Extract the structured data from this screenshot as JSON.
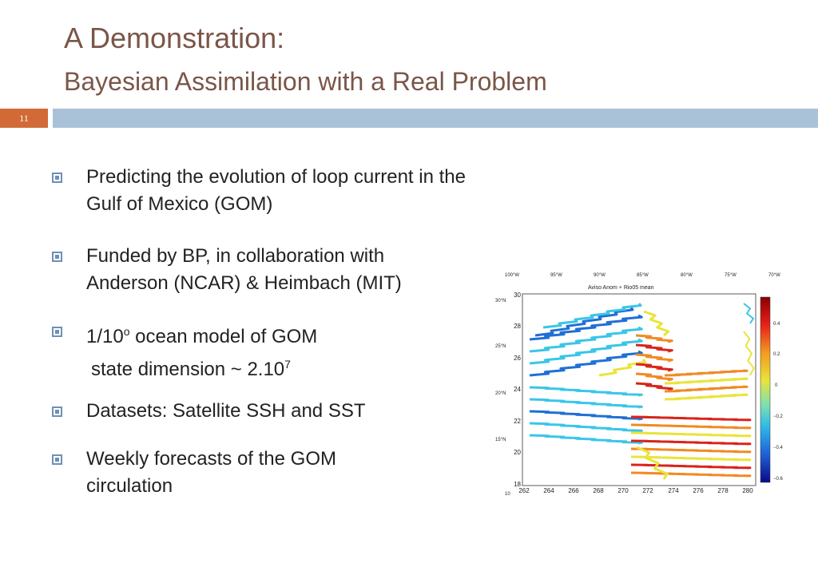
{
  "title": "A Demonstration:",
  "subtitle": "Bayesian Assimilation with a Real Problem",
  "slide_number": "11",
  "bullets": [
    {
      "line1": "Predicting the evolution of loop current in the",
      "line2": "Gulf of Mexico (GOM)"
    },
    {
      "line1": "Funded by BP, in collaboration with",
      "line2": "Anderson (NCAR) & Heimbach (MIT)"
    },
    {
      "line1_pre": "1/10",
      "line1_sup": "o",
      "line1_post": " ocean model of GOM",
      "line2_pre": "state dimension ~ 2.10",
      "line2_sup": "7"
    },
    {
      "line1": "Datasets: Satellite SSH and SST"
    },
    {
      "line1": "Weekly forecasts of the GOM",
      "line2": "circulation"
    }
  ],
  "figure": {
    "title": "Aviso Anom + Rio05 mean",
    "top_labels": [
      "100°W",
      "95°W",
      "90°W",
      "85°W",
      "80°W",
      "75°W",
      "70°W"
    ],
    "side_labels": [
      "30°N",
      "25°N",
      "20°N",
      "15°N",
      "10"
    ],
    "y_ticks": [
      "30",
      "28",
      "26",
      "24",
      "22",
      "20",
      "18"
    ],
    "x_ticks": [
      "262",
      "264",
      "266",
      "268",
      "270",
      "272",
      "274",
      "276",
      "278",
      "280"
    ],
    "colorbar_ticks": [
      "0.4",
      "0.2",
      "0",
      "−0.2",
      "−0.4",
      "−0.6"
    ],
    "colors": {
      "blue": "#1f6fd6",
      "cyan": "#39c6e8",
      "yellow": "#e9e43a",
      "orange": "#f08a24",
      "red": "#d8241c"
    }
  }
}
